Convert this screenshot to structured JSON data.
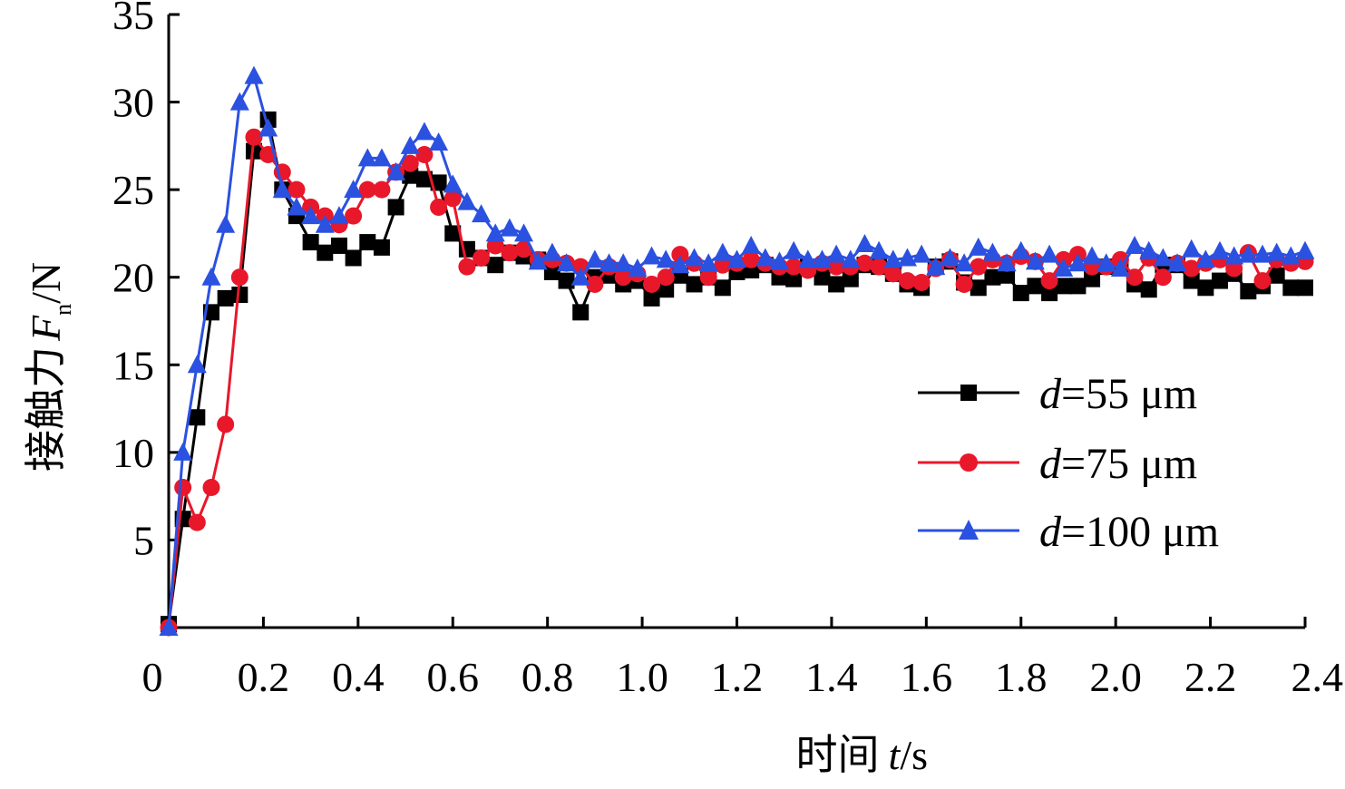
{
  "chart_data": {
    "type": "line",
    "xlabel_cjk": "时间",
    "xlabel_var": "t",
    "xlabel_unit": "/s",
    "ylabel_cjk": "接触力",
    "ylabel_var": "F",
    "ylabel_sub": "n",
    "ylabel_unit": "/N",
    "xlim": [
      0,
      2.4
    ],
    "ylim": [
      0,
      35
    ],
    "x_ticks": [
      "0",
      "0.2",
      "0.4",
      "0.6",
      "0.8",
      "1.0",
      "1.2",
      "1.4",
      "1.6",
      "1.8",
      "2.0",
      "2.2",
      "2.4"
    ],
    "y_ticks": [
      "5",
      "10",
      "15",
      "20",
      "25",
      "30",
      "35"
    ],
    "legend_position": "center-right",
    "grid": false,
    "x": [
      0.0,
      0.03,
      0.06,
      0.09,
      0.12,
      0.15,
      0.18,
      0.21,
      0.24,
      0.27,
      0.3,
      0.33,
      0.36,
      0.39,
      0.42,
      0.45,
      0.48,
      0.51,
      0.54,
      0.57,
      0.6,
      0.63,
      0.66,
      0.69,
      0.72,
      0.75,
      0.78,
      0.81,
      0.84,
      0.87,
      0.9,
      0.93,
      0.96,
      0.99,
      1.02,
      1.05,
      1.08,
      1.11,
      1.14,
      1.17,
      1.2,
      1.23,
      1.26,
      1.29,
      1.32,
      1.35,
      1.38,
      1.41,
      1.44,
      1.47,
      1.5,
      1.53,
      1.56,
      1.59,
      1.62,
      1.65,
      1.68,
      1.71,
      1.74,
      1.77,
      1.8,
      1.83,
      1.86,
      1.89,
      1.92,
      1.95,
      1.98,
      2.01,
      2.04,
      2.07,
      2.1,
      2.13,
      2.16,
      2.19,
      2.22,
      2.25,
      2.28,
      2.31,
      2.34,
      2.37,
      2.4
    ],
    "series": [
      {
        "name_var": "d",
        "name_rest": "=55 μm",
        "color": "#000000",
        "marker": "square",
        "values": [
          0.2,
          6.2,
          12.0,
          18.0,
          18.8,
          19.0,
          27.2,
          29.0,
          25.0,
          23.5,
          22.0,
          21.4,
          21.8,
          21.1,
          22.0,
          21.7,
          24.0,
          25.8,
          25.6,
          25.4,
          22.5,
          21.6,
          21.1,
          20.7,
          21.4,
          21.2,
          21.0,
          20.3,
          19.8,
          18.0,
          20.0,
          20.1,
          19.6,
          19.8,
          18.8,
          19.3,
          20.1,
          19.6,
          20.0,
          19.4,
          20.3,
          20.4,
          20.7,
          20.0,
          19.9,
          20.6,
          20.0,
          19.6,
          19.9,
          20.7,
          20.6,
          20.2,
          19.6,
          19.4,
          20.6,
          20.9,
          19.7,
          19.4,
          20.0,
          20.1,
          19.1,
          19.5,
          19.1,
          19.5,
          19.5,
          19.9,
          20.6,
          20.6,
          19.6,
          19.3,
          20.7,
          20.7,
          19.8,
          19.4,
          19.8,
          20.2,
          19.2,
          19.5,
          20.1,
          19.4,
          19.4
        ]
      },
      {
        "name_var": "d",
        "name_rest": "=75 μm",
        "color": "#e8172a",
        "marker": "circle",
        "values": [
          0.0,
          8.0,
          6.0,
          8.0,
          11.6,
          20.0,
          28.0,
          27.0,
          26.0,
          25.0,
          24.0,
          23.5,
          23.0,
          23.5,
          25.0,
          25.0,
          26.0,
          26.5,
          27.0,
          24.0,
          24.5,
          20.6,
          21.1,
          21.8,
          21.4,
          21.6,
          21.0,
          21.0,
          20.8,
          20.6,
          19.6,
          20.6,
          20.0,
          20.2,
          19.6,
          20.0,
          21.3,
          20.8,
          20.0,
          20.7,
          20.8,
          21.0,
          20.8,
          20.6,
          20.6,
          20.4,
          20.8,
          20.6,
          20.6,
          20.8,
          20.6,
          20.2,
          19.8,
          19.7,
          20.5,
          21.0,
          19.6,
          20.6,
          21.0,
          20.8,
          21.2,
          20.9,
          19.8,
          21.0,
          21.3,
          20.6,
          20.6,
          21.0,
          20.0,
          21.1,
          20.0,
          20.8,
          20.5,
          20.8,
          21.0,
          20.5,
          21.4,
          19.8,
          21.0,
          20.8,
          20.9
        ]
      },
      {
        "name_var": "d",
        "name_rest": "=100 μm",
        "color": "#2b51e0",
        "marker": "triangle",
        "values": [
          0.0,
          10.0,
          15.0,
          20.0,
          23.0,
          30.0,
          31.5,
          28.5,
          25.0,
          24.0,
          23.5,
          23.0,
          23.5,
          25.0,
          26.8,
          26.8,
          26.0,
          27.5,
          28.3,
          27.7,
          25.3,
          24.3,
          23.6,
          22.5,
          22.8,
          22.5,
          20.9,
          21.4,
          20.8,
          20.0,
          21.0,
          20.8,
          20.8,
          20.5,
          21.2,
          21.0,
          20.7,
          21.1,
          20.8,
          21.4,
          21.0,
          21.8,
          21.1,
          20.9,
          21.5,
          21.0,
          21.0,
          21.3,
          21.0,
          21.9,
          21.5,
          21.0,
          21.1,
          21.3,
          20.6,
          21.1,
          20.8,
          21.7,
          21.4,
          20.8,
          21.5,
          20.9,
          21.3,
          20.5,
          20.8,
          21.2,
          20.8,
          20.5,
          21.8,
          21.5,
          21.1,
          20.8,
          21.6,
          21.0,
          21.5,
          21.2,
          21.3,
          21.3,
          21.4,
          21.2,
          21.5
        ]
      }
    ]
  }
}
